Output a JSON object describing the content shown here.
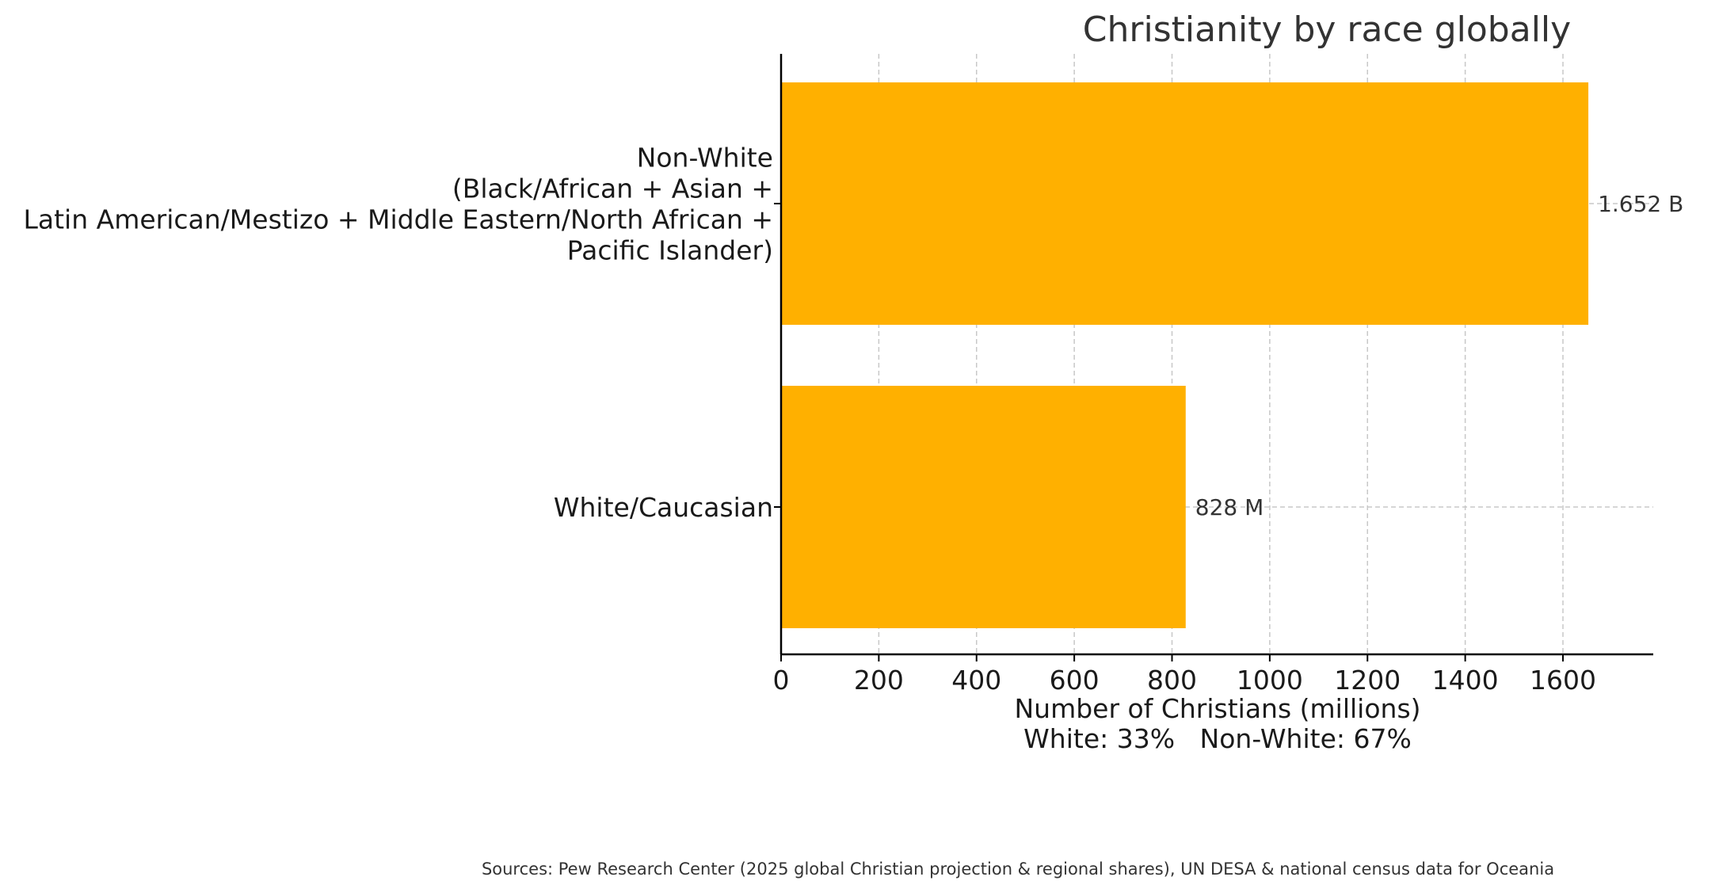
{
  "chart_data": {
    "type": "bar",
    "orientation": "horizontal",
    "title": "Christianity by race globally",
    "xlabel": "Number of Christians (millions)",
    "xlabel_line2": "White: 33%   Non-White: 67%",
    "source": "Sources: Pew Research Center (2025 global Christian projection & regional shares), UN DESA & national census data for Oceania",
    "categories": [
      {
        "label_lines": [
          "Non-White",
          "(Black/African + Asian +",
          "Latin American/Mestizo + Middle Eastern/North African +",
          "Pacific Islander)"
        ],
        "value": 1652,
        "value_label": "1.652 B"
      },
      {
        "label_lines": [
          "White/Caucasian"
        ],
        "value": 828,
        "value_label": "828 M"
      }
    ],
    "xlim": [
      0,
      1735
    ],
    "xticks": [
      0,
      200,
      400,
      600,
      800,
      1000,
      1200,
      1400,
      1600
    ],
    "grid": true,
    "bar_color": "#FFB000"
  }
}
